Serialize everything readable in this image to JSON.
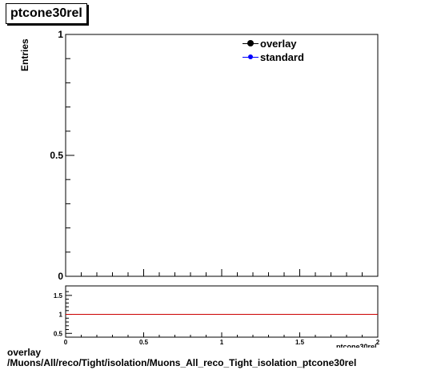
{
  "title": "ptcone30rel",
  "legend": [
    {
      "label": "overlay",
      "color": "#000000"
    },
    {
      "label": "standard",
      "color": "#0000ff"
    }
  ],
  "footer": {
    "line1": "overlay",
    "line2": "/Muons/All/reco/Tight/isolation/Muons_All_reco_Tight_isolation_ptcone30rel"
  },
  "chart_data": [
    {
      "type": "line",
      "title": "ptcone30rel",
      "ylabel": "Entries",
      "xlabel": "",
      "xlim": [
        0,
        2
      ],
      "ylim": [
        0,
        1
      ],
      "y_tick_labels": [
        "0",
        "0.5",
        "1"
      ],
      "series": [
        {
          "name": "overlay",
          "color": "#000000",
          "values": []
        },
        {
          "name": "standard",
          "color": "#0000ff",
          "values": []
        }
      ],
      "legend_position": "top-right",
      "grid": false
    },
    {
      "type": "line",
      "xlabel": "ptcone30rel",
      "xlim": [
        0,
        2
      ],
      "ylim": [
        0.4,
        1.75
      ],
      "x_tick_labels": [
        "0",
        "0.5",
        "1",
        "1.5",
        "2"
      ],
      "y_tick_labels": [
        "0.5",
        "1",
        "1.5"
      ],
      "reference_line": {
        "y": 1,
        "color": "#cc0000"
      },
      "grid": false
    }
  ]
}
